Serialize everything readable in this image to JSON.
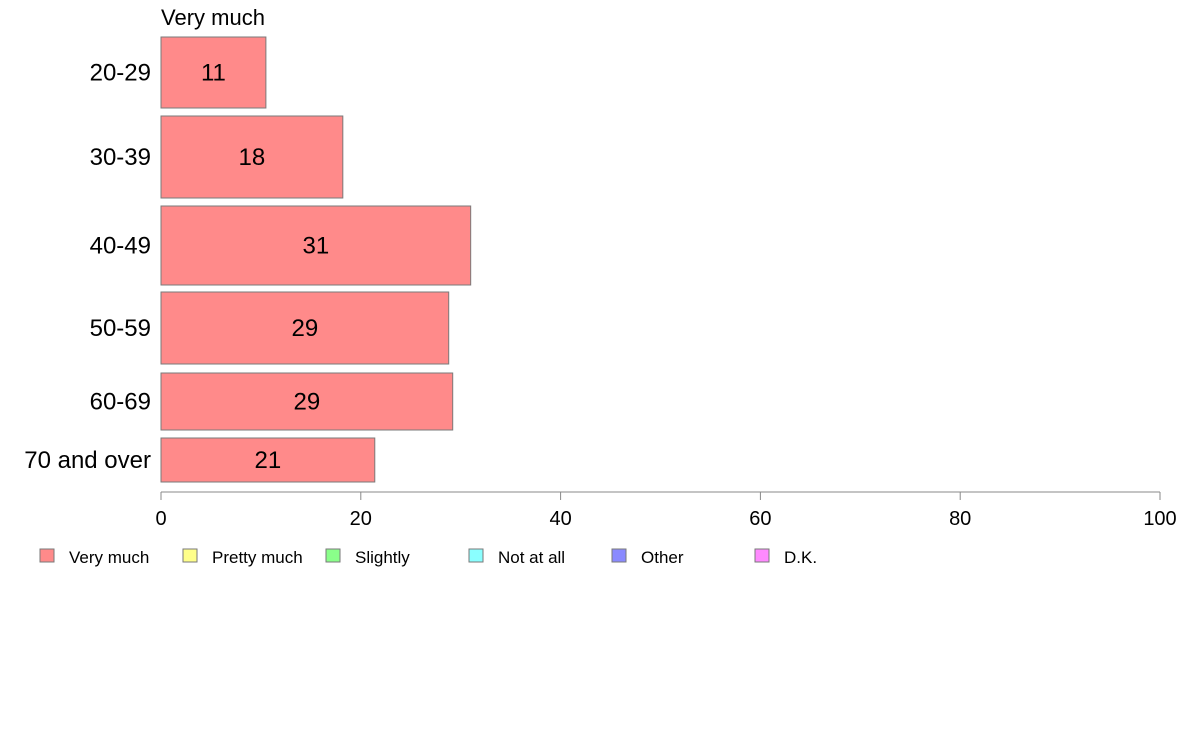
{
  "chart_data": {
    "type": "bar",
    "orientation": "horizontal",
    "title": "Very much",
    "categories": [
      "20-29",
      "30-39",
      "40-49",
      "50-59",
      "60-69",
      "70 and over"
    ],
    "series": [
      {
        "name": "Very much",
        "values": [
          10.5,
          18.2,
          31.0,
          28.8,
          29.2,
          21.4
        ],
        "labels": [
          "11",
          "18",
          "31",
          "29",
          "29",
          "21"
        ],
        "color": "#ff8a8a"
      }
    ],
    "xlim": [
      0,
      100
    ],
    "xticks": [
      0,
      20,
      40,
      60,
      80,
      100
    ],
    "grid": false,
    "legend": {
      "placement": "bottom",
      "entries": [
        {
          "label": "Very much",
          "color": "#ff8a8a"
        },
        {
          "label": "Pretty much",
          "color": "#ffff8a"
        },
        {
          "label": "Slightly",
          "color": "#8aff8a"
        },
        {
          "label": "Not at all",
          "color": "#8affff"
        },
        {
          "label": "Other",
          "color": "#8a8aff"
        },
        {
          "label": "D.K.",
          "color": "#ff8aff"
        }
      ]
    }
  }
}
